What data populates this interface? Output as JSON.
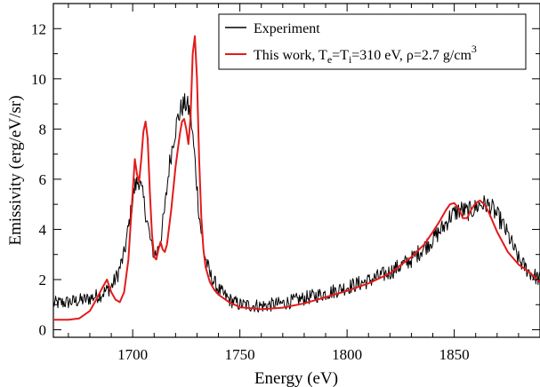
{
  "chart_data": {
    "type": "line",
    "title": "",
    "xlabel": "Energy (eV)",
    "ylabel": "Emissivity (erg/eV/sr)",
    "xlim": [
      1663,
      1890
    ],
    "ylim": [
      -0.3,
      13
    ],
    "xticks": [
      1700,
      1750,
      1800,
      1850
    ],
    "yticks": [
      0,
      2,
      4,
      6,
      8,
      10,
      12
    ],
    "grid": false,
    "legend_position": "top-right",
    "legend_box": true,
    "series": [
      {
        "name": "Experiment",
        "color": "#000000",
        "noisy": true,
        "noise_amplitude": 0.32,
        "x": [
          1663,
          1670,
          1678,
          1685,
          1690,
          1693,
          1696,
          1699,
          1701,
          1703,
          1705,
          1707,
          1709,
          1711,
          1713,
          1715,
          1717,
          1719,
          1721,
          1723,
          1725,
          1727,
          1729,
          1731,
          1733,
          1736,
          1740,
          1745,
          1750,
          1760,
          1770,
          1780,
          1790,
          1800,
          1810,
          1820,
          1830,
          1835,
          1840,
          1845,
          1848,
          1851,
          1853,
          1856,
          1859,
          1862,
          1865,
          1868,
          1872,
          1876,
          1880,
          1885,
          1890
        ],
        "y": [
          1.05,
          1.1,
          1.2,
          1.4,
          1.7,
          2.2,
          3.0,
          4.6,
          5.7,
          6.0,
          5.2,
          4.2,
          3.2,
          3.0,
          3.6,
          4.8,
          6.5,
          7.6,
          8.4,
          8.9,
          9.0,
          8.6,
          6.8,
          4.6,
          3.2,
          2.2,
          1.6,
          1.2,
          1.0,
          0.95,
          1.05,
          1.25,
          1.45,
          1.7,
          1.95,
          2.3,
          2.8,
          3.2,
          3.6,
          4.1,
          4.5,
          4.7,
          4.8,
          4.7,
          4.8,
          5.0,
          5.0,
          4.8,
          4.3,
          3.6,
          2.8,
          2.3,
          2.0
        ]
      },
      {
        "name": "This work, Te=Ti=310 eV, ρ=2.7 g/cm3",
        "color": "#e31b1b",
        "noisy": false,
        "x": [
          1663,
          1670,
          1675,
          1680,
          1683,
          1686,
          1688,
          1690,
          1692,
          1694,
          1696,
          1698,
          1700,
          1701,
          1702,
          1703,
          1704,
          1705,
          1706,
          1707,
          1708,
          1709,
          1710,
          1711,
          1712,
          1713,
          1714,
          1715,
          1716,
          1718,
          1720,
          1722,
          1723,
          1724,
          1725,
          1726,
          1727,
          1728,
          1729,
          1730,
          1731,
          1732,
          1733,
          1734,
          1736,
          1738,
          1740,
          1745,
          1750,
          1760,
          1770,
          1780,
          1790,
          1800,
          1810,
          1820,
          1830,
          1836,
          1840,
          1843,
          1846,
          1848,
          1850,
          1852,
          1854,
          1856,
          1858,
          1860,
          1862,
          1864,
          1866,
          1870,
          1875,
          1880,
          1885,
          1890
        ],
        "y": [
          0.4,
          0.4,
          0.45,
          0.75,
          1.2,
          1.7,
          2.0,
          1.5,
          1.2,
          1.1,
          1.5,
          2.8,
          5.5,
          6.8,
          6.2,
          5.9,
          6.8,
          7.9,
          8.3,
          7.6,
          5.5,
          3.8,
          2.9,
          2.8,
          3.2,
          3.5,
          3.2,
          3.1,
          3.4,
          4.8,
          6.5,
          7.8,
          8.3,
          8.4,
          8.0,
          7.4,
          8.5,
          11.0,
          11.7,
          10.0,
          6.8,
          4.5,
          3.2,
          2.5,
          1.9,
          1.6,
          1.4,
          1.1,
          0.9,
          0.82,
          0.88,
          1.05,
          1.3,
          1.55,
          1.85,
          2.25,
          2.9,
          3.4,
          3.9,
          4.3,
          4.75,
          5.0,
          5.05,
          4.85,
          4.45,
          4.45,
          4.8,
          5.05,
          5.15,
          5.0,
          4.7,
          3.9,
          3.1,
          2.6,
          2.3,
          1.9
        ]
      }
    ]
  },
  "legend": {
    "items": [
      {
        "label": "Experiment",
        "color": "#000000"
      },
      {
        "label_parts": [
          "This work, T",
          "e",
          "=T",
          "i",
          "=310 eV, ρ=2.7 g/cm",
          "3"
        ],
        "color": "#e31b1b"
      }
    ]
  }
}
